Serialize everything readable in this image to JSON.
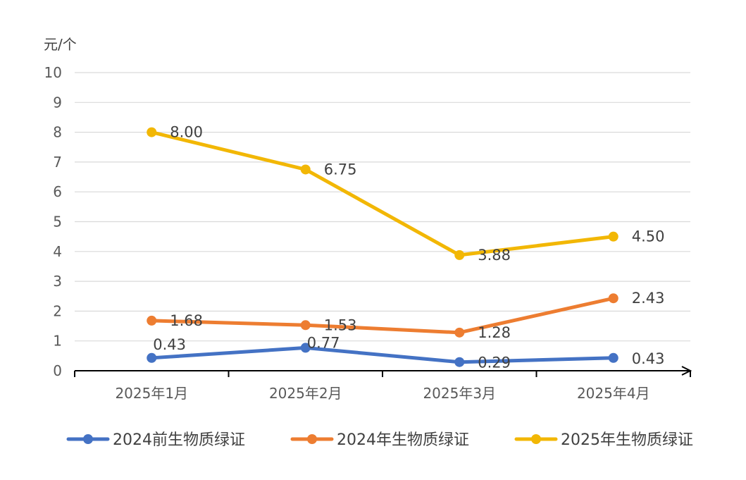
{
  "chart_data": {
    "type": "line",
    "title": "",
    "ylabel": "元/个",
    "xlabel": "",
    "ylim": [
      0,
      10
    ],
    "yticks": [
      0,
      1,
      2,
      3,
      4,
      5,
      6,
      7,
      8,
      9,
      10
    ],
    "grid": true,
    "legend_position": "bottom",
    "categories": [
      "2025年1月",
      "2025年2月",
      "2025年3月",
      "2025年4月"
    ],
    "series": [
      {
        "name": "2024前生物质绿证",
        "color": "#4472C4",
        "values": [
          0.43,
          0.77,
          0.29,
          0.43
        ],
        "labels": [
          "0.43",
          "0.77",
          "0.29",
          "0.43"
        ]
      },
      {
        "name": "2024年生物质绿证",
        "color": "#ED7D31",
        "values": [
          1.68,
          1.53,
          1.28,
          2.43
        ],
        "labels": [
          "1.68",
          "1.53",
          "1.28",
          "2.43"
        ]
      },
      {
        "name": "2025年生物质绿证",
        "color": "#F2B705",
        "values": [
          8.0,
          6.75,
          3.88,
          4.5
        ],
        "labels": [
          "8.00",
          "6.75",
          "3.88",
          "4.50"
        ]
      }
    ]
  }
}
